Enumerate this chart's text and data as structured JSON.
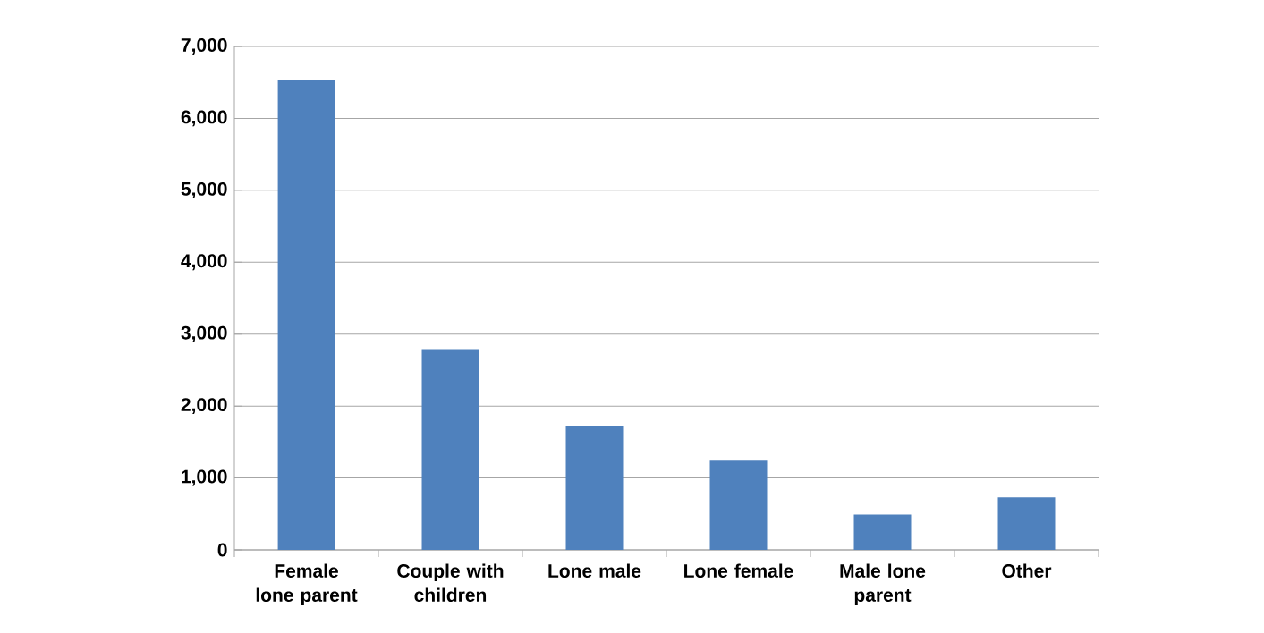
{
  "chart_data": {
    "type": "bar",
    "categories": [
      "Female lone parent",
      "Couple with children",
      "Lone male",
      "Lone female",
      "Male lone parent",
      "Other"
    ],
    "values": [
      6530,
      2790,
      1720,
      1240,
      490,
      730
    ],
    "color": "#4f81bd",
    "ylim": [
      0,
      7000
    ],
    "yticks": [
      {
        "value": 0,
        "label": "0"
      },
      {
        "value": 1000,
        "label": "1,000"
      },
      {
        "value": 2000,
        "label": "2,000"
      },
      {
        "value": 3000,
        "label": "3,000"
      },
      {
        "value": 4000,
        "label": "4,000"
      },
      {
        "value": 5000,
        "label": "5,000"
      },
      {
        "value": 6000,
        "label": "6,000"
      },
      {
        "value": 7000,
        "label": "7,000"
      }
    ],
    "grid": "y"
  }
}
